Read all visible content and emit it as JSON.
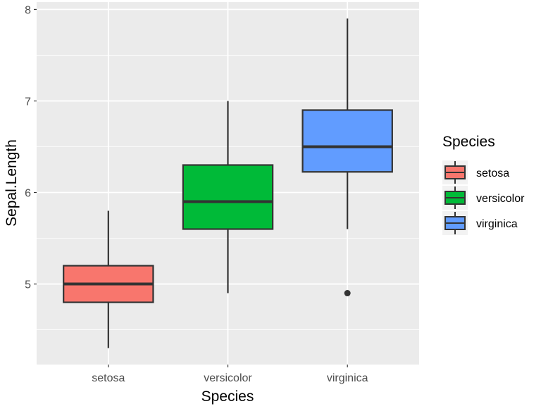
{
  "chart_data": {
    "type": "boxplot",
    "xlabel": "Species",
    "ylabel": "Sepal.Length",
    "categories": [
      "setosa",
      "versicolor",
      "virginica"
    ],
    "ylim": [
      4.12,
      8.08
    ],
    "yticks": [
      5,
      6,
      7,
      8
    ],
    "grid": true,
    "series": [
      {
        "category": "setosa",
        "color": "#F8766D",
        "lower_whisker": 4.3,
        "q1": 4.8,
        "median": 5.0,
        "q3": 5.2,
        "upper_whisker": 5.8,
        "outliers": []
      },
      {
        "category": "versicolor",
        "color": "#00BA38",
        "lower_whisker": 4.9,
        "q1": 5.6,
        "median": 5.9,
        "q3": 6.3,
        "upper_whisker": 7.0,
        "outliers": []
      },
      {
        "category": "virginica",
        "color": "#619CFF",
        "lower_whisker": 5.6,
        "q1": 6.225,
        "median": 6.5,
        "q3": 6.9,
        "upper_whisker": 7.9,
        "outliers": [
          4.9
        ]
      }
    ],
    "legend": {
      "title": "Species",
      "position": "right",
      "entries": [
        "setosa",
        "versicolor",
        "virginica"
      ]
    },
    "panel_background": "#EBEBEB"
  }
}
